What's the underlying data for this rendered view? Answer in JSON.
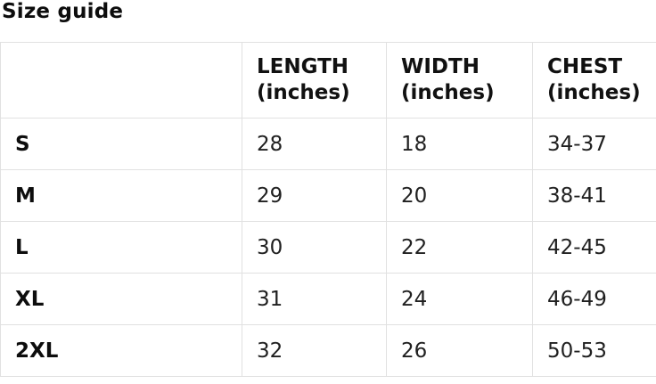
{
  "page": {
    "title": "Size guide"
  },
  "chart_data": {
    "type": "table",
    "title": "Size guide",
    "columns": [
      "",
      "LENGTH (inches)",
      "WIDTH (inches)",
      "CHEST (inches)"
    ],
    "rows": [
      [
        "S",
        "28",
        "18",
        "34-37"
      ],
      [
        "M",
        "29",
        "20",
        "38-41"
      ],
      [
        "L",
        "30",
        "22",
        "42-45"
      ],
      [
        "XL",
        "31",
        "24",
        "46-49"
      ],
      [
        "2XL",
        "32",
        "26",
        "50-53"
      ]
    ]
  },
  "colors": {
    "background": "#ffffff",
    "border": "#e1e1e1",
    "heading_text": "#111111",
    "body_text": "#202020"
  }
}
